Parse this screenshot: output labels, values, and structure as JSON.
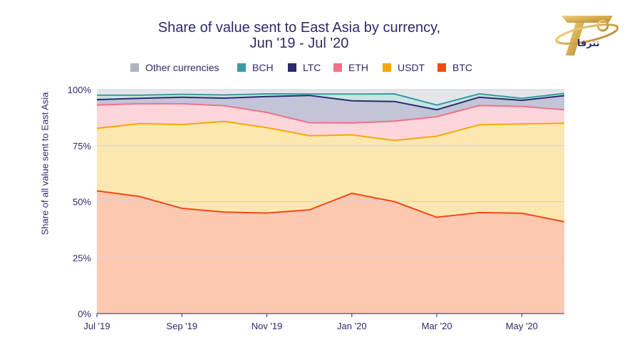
{
  "chart_data": {
    "type": "area",
    "title": "Share of value sent to East Asia by currency,",
    "subtitle": "Jun '19 - Jul '20",
    "xlabel": "",
    "ylabel": "Share of all value sent to East Asia",
    "ylim": [
      0,
      100
    ],
    "y_ticks": [
      "0%",
      "25%",
      "50%",
      "75%",
      "100%"
    ],
    "y_tick_values": [
      0,
      25,
      50,
      75,
      100
    ],
    "x_ticks": [
      {
        "label": "Jul '19",
        "at": 0
      },
      {
        "label": "Sep '19",
        "at": 2
      },
      {
        "label": "Nov '19",
        "at": 4
      },
      {
        "label": "Jan '20",
        "at": 6
      },
      {
        "label": "Mar '20",
        "at": 8
      },
      {
        "label": "May '20",
        "at": 10
      }
    ],
    "x": [
      0,
      1,
      2,
      3,
      4,
      5,
      6,
      7,
      8,
      9,
      10,
      11
    ],
    "stacking": "cumulative_tops",
    "series": [
      {
        "name": "BTC",
        "color": "#f04a12",
        "fill": "#fdc8b0",
        "values": [
          54.8,
          52.3,
          47.0,
          45.3,
          44.9,
          46.3,
          53.7,
          50.0,
          43.0,
          45.1,
          44.8,
          41.0
        ]
      },
      {
        "name": "USDT",
        "color": "#f7a800",
        "fill": "#fde7b0",
        "values": [
          82.7,
          84.8,
          84.4,
          85.8,
          83.0,
          79.4,
          79.8,
          77.3,
          79.2,
          84.3,
          84.7,
          85.0
        ]
      },
      {
        "name": "ETH",
        "color": "#f07288",
        "fill": "#fdd6dc",
        "values": [
          93.1,
          93.7,
          93.7,
          92.8,
          89.8,
          85.2,
          85.1,
          85.9,
          87.9,
          92.9,
          92.5,
          91.0
        ]
      },
      {
        "name": "LTC",
        "color": "#2b2b6e",
        "fill": "#c3c4d8",
        "values": [
          95.5,
          96.1,
          96.6,
          96.2,
          96.9,
          97.4,
          95.0,
          94.7,
          91.0,
          96.6,
          95.2,
          97.3
        ]
      },
      {
        "name": "BCH",
        "color": "#3a9ba0",
        "fill": "#c8e4e4",
        "values": [
          97.5,
          97.5,
          97.9,
          97.6,
          98.1,
          98.0,
          98.0,
          98.1,
          93.1,
          98.1,
          96.1,
          98.3
        ]
      },
      {
        "name": "Other currencies",
        "color": "#aeb3bd",
        "fill": "#e4e6ea",
        "values": [
          100,
          100,
          100,
          100,
          100,
          100,
          100,
          100,
          100,
          100,
          100,
          100
        ]
      }
    ],
    "legend": [
      "Other currencies",
      "BCH",
      "LTC",
      "ETH",
      "USDT",
      "BTC"
    ]
  },
  "logo": {
    "text": "تترفا"
  }
}
